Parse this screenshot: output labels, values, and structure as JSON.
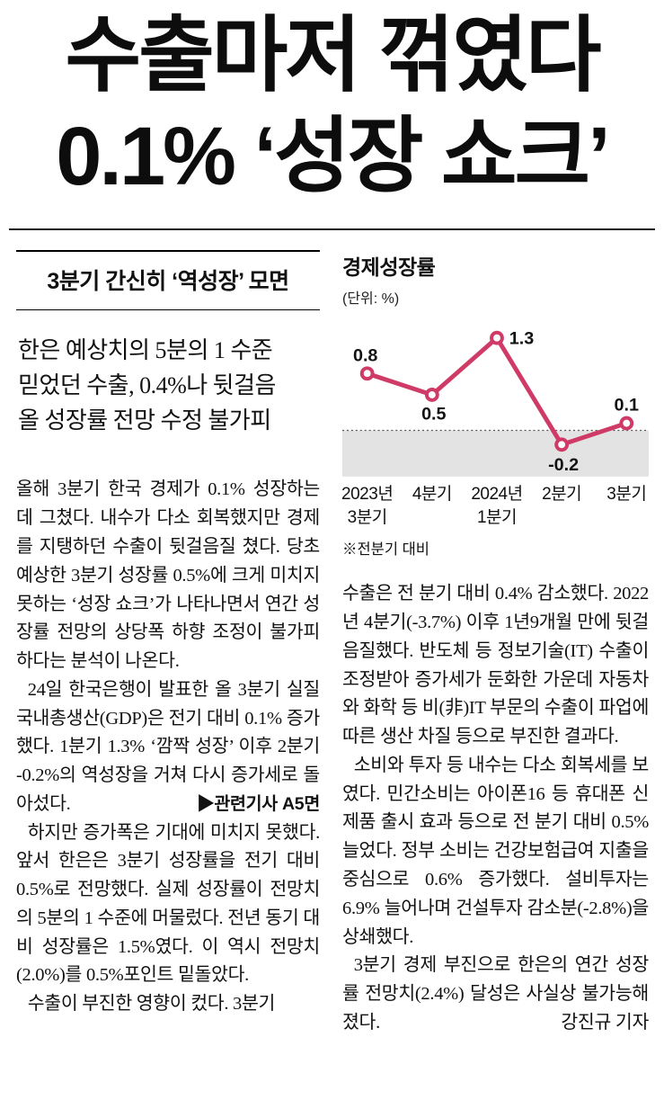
{
  "headline": {
    "line1": "수출마저 꺾였다",
    "line2": "0.1% ‘성장 쇼크’"
  },
  "left_column": {
    "subhead": "3분기 간신히 ‘역성장’ 모면",
    "lede_lines": [
      "한은 예상치의 5분의 1 수준",
      "믿었던 수출, 0.4%나 뒷걸음",
      "올 성장률 전망 수정 불가피"
    ],
    "paragraph1": "올해 3분기 한국 경제가 0.1% 성장하는 데 그쳤다. 내수가 다소 회복했지만 경제를 지탱하던 수출이 뒷걸음질 쳤다. 당초 예상한 3분기 성장률 0.5%에 크게 미치지 못하는 ‘성장 쇼크’가 나타나면서 연간 성장률 전망의 상당폭 하향 조정이 불가피하다는 분석이 나온다.",
    "paragraph2": "24일 한국은행이 발표한 올 3분기 실질 국내총생산(GDP)은 전기 대비 0.1% 증가했다. 1분기 1.3% ‘깜짝 성장’ 이후 2분기 -0.2%의 역성장을 거쳐 다시 증가세로 돌아섰다.",
    "related_note": "▶관련기사 A5면",
    "paragraph3": "하지만 증가폭은 기대에 미치지 못했다. 앞서 한은은 3분기 성장률을 전기 대비 0.5%로 전망했다. 실제 성장률이 전망치의 5분의 1 수준에 머물렀다. 전년 동기 대비 성장률은 1.5%였다. 이 역시 전망치(2.0%)를 0.5%포인트 밑돌았다.",
    "paragraph4": "수출이 부진한 영향이 컸다. 3분기"
  },
  "right_column": {
    "paragraph1": "수출은 전 분기 대비 0.4% 감소했다. 2022년 4분기(-3.7%) 이후 1년9개월 만에 뒷걸음질했다. 반도체 등 정보기술(IT) 수출이 조정받아 증가세가 둔화한 가운데 자동차와 화학 등 비(非)IT 부문의 수출이 파업에 따른 생산 차질 등으로 부진한 결과다.",
    "paragraph2": "소비와 투자 등 내수는 다소 회복세를 보였다. 민간소비는 아이폰16 등 휴대폰 신제품 출시 효과 등으로 전 분기 대비 0.5% 늘었다. 정부 소비는 건강보험급여 지출을 중심으로 0.6% 증가했다. 설비투자는 6.9% 늘어나며 건설투자 감소분(-2.8%)을 상쇄했다.",
    "paragraph3": "3분기 경제 부진으로 한은의 연간 성장률 전망치(2.4%) 달성은 사실상 불가능해졌다.",
    "reporter": "강진규 기자"
  },
  "chart_data": {
    "type": "line",
    "title": "경제성장률",
    "unit_label": "(단위: %)",
    "categories": [
      "2023년 3분기",
      "4분기",
      "2024년 1분기",
      "2분기",
      "3분기"
    ],
    "values": [
      0.8,
      0.5,
      1.3,
      -0.2,
      0.1
    ],
    "footnote": "※전분기 대비",
    "line_color": "#cf3a66",
    "negative_band_color": "#e3e3e3",
    "baseline": 0,
    "ylim": [
      -0.65,
      1.6
    ],
    "grid": "off",
    "legend": "none"
  }
}
